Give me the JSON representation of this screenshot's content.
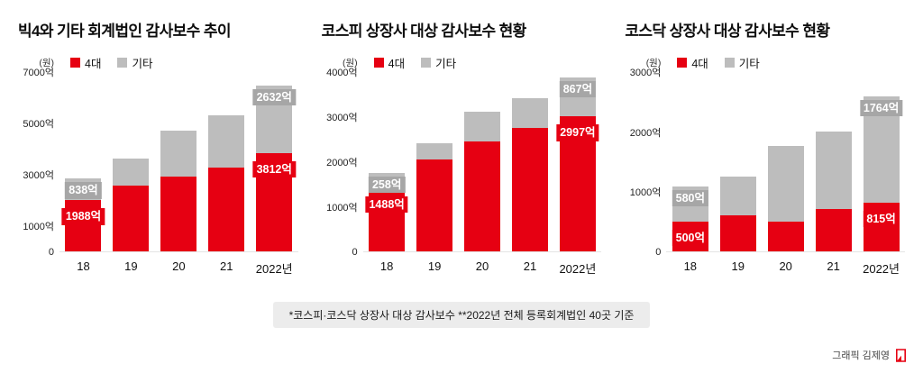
{
  "chart_data": [
    {
      "type": "bar",
      "stacked": true,
      "title": "빅4와 기타 회계법인 감사보수 추이",
      "unit": "(원)",
      "y_max": 7000,
      "y_ticks": [
        {
          "value": 7000,
          "label": "7000억"
        },
        {
          "value": 5000,
          "label": "5000억"
        },
        {
          "value": 3000,
          "label": "3000억"
        },
        {
          "value": 1000,
          "label": "1000억"
        },
        {
          "value": 0,
          "label": "0"
        }
      ],
      "categories": [
        "18",
        "19",
        "20",
        "21",
        "2022년"
      ],
      "legend": [
        {
          "label": "4대",
          "color": "#e60012"
        },
        {
          "label": "기타",
          "color": "#bdbdbd"
        }
      ],
      "series": [
        {
          "name": "4대",
          "key": "big4",
          "color": "#e60012",
          "badge_color": "#e60012",
          "values": [
            1988,
            2550,
            2900,
            3250,
            3812
          ]
        },
        {
          "name": "기타",
          "key": "others",
          "color": "#bdbdbd",
          "badge_color": "#a6a6a6",
          "values": [
            838,
            1050,
            1800,
            2050,
            2632
          ]
        }
      ],
      "badges": [
        {
          "bar": 0,
          "series": 1,
          "text": "838억"
        },
        {
          "bar": 0,
          "series": 0,
          "text": "1988억"
        },
        {
          "bar": 4,
          "series": 1,
          "text": "2632억"
        },
        {
          "bar": 4,
          "series": 0,
          "text": "3812억"
        }
      ]
    },
    {
      "type": "bar",
      "stacked": true,
      "title": "코스피 상장사 대상 감사보수 현황",
      "unit": "(원)",
      "y_max": 4000,
      "y_ticks": [
        {
          "value": 4000,
          "label": "4000억"
        },
        {
          "value": 3000,
          "label": "3000억"
        },
        {
          "value": 2000,
          "label": "2000억"
        },
        {
          "value": 1000,
          "label": "1000억"
        },
        {
          "value": 0,
          "label": "0"
        }
      ],
      "categories": [
        "18",
        "19",
        "20",
        "21",
        "2022년"
      ],
      "legend": [
        {
          "label": "4대",
          "color": "#e60012"
        },
        {
          "label": "기타",
          "color": "#bdbdbd"
        }
      ],
      "series": [
        {
          "name": "4대",
          "key": "big4",
          "color": "#e60012",
          "badge_color": "#e60012",
          "values": [
            1488,
            2050,
            2450,
            2750,
            2997
          ]
        },
        {
          "name": "기타",
          "key": "others",
          "color": "#bdbdbd",
          "badge_color": "#a6a6a6",
          "values": [
            258,
            350,
            650,
            650,
            867
          ]
        }
      ],
      "badges": [
        {
          "bar": 0,
          "series": 1,
          "text": "258억"
        },
        {
          "bar": 0,
          "series": 0,
          "text": "1488억"
        },
        {
          "bar": 4,
          "series": 1,
          "text": "867억"
        },
        {
          "bar": 4,
          "series": 0,
          "text": "2997억"
        }
      ]
    },
    {
      "type": "bar",
      "stacked": true,
      "title": "코스닥 상장사 대상 감사보수 현황",
      "unit": "(원)",
      "y_max": 3000,
      "y_ticks": [
        {
          "value": 3000,
          "label": "3000억"
        },
        {
          "value": 2000,
          "label": "2000억"
        },
        {
          "value": 1000,
          "label": "1000억"
        },
        {
          "value": 0,
          "label": "0"
        }
      ],
      "categories": [
        "18",
        "19",
        "20",
        "21",
        "2022년"
      ],
      "legend": [
        {
          "label": "4대",
          "color": "#e60012"
        },
        {
          "label": "기타",
          "color": "#bdbdbd"
        }
      ],
      "series": [
        {
          "name": "4대",
          "key": "big4",
          "color": "#e60012",
          "badge_color": "#e60012",
          "values": [
            500,
            600,
            500,
            700,
            815
          ]
        },
        {
          "name": "기타",
          "key": "others",
          "color": "#bdbdbd",
          "badge_color": "#a6a6a6",
          "values": [
            580,
            650,
            1250,
            1300,
            1764
          ]
        }
      ],
      "badges": [
        {
          "bar": 0,
          "series": 1,
          "text": "580억"
        },
        {
          "bar": 0,
          "series": 0,
          "text": "500억"
        },
        {
          "bar": 4,
          "series": 1,
          "text": "1764억"
        },
        {
          "bar": 4,
          "series": 0,
          "text": "815억"
        }
      ]
    }
  ],
  "footer": {
    "note": "*코스피·코스닥 상장사 대상 감사보수 **2022년 전체 등록회계법인 40곳 기준"
  },
  "credit": {
    "text": "그래픽 김제영"
  },
  "colors": {
    "big4": "#e60012",
    "others": "#bdbdbd",
    "badge_others": "#a6a6a6"
  }
}
